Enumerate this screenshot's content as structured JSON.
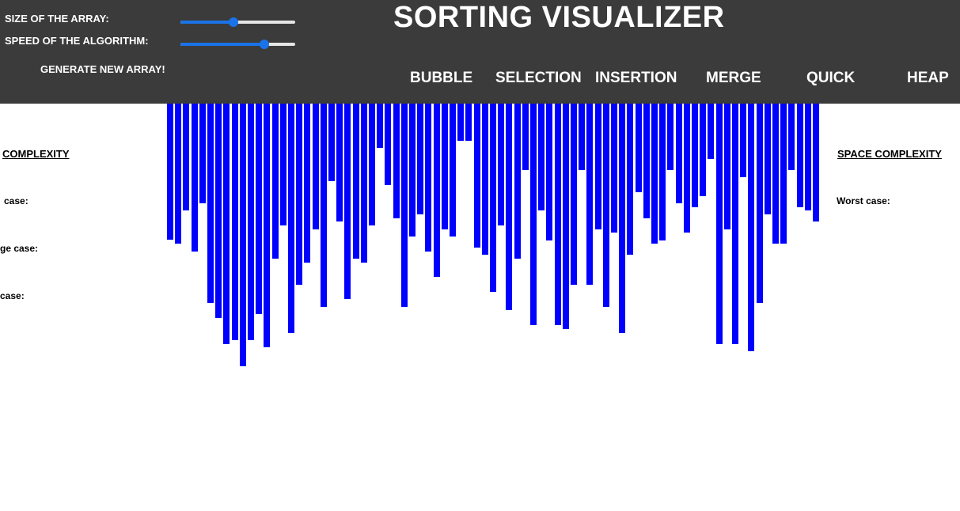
{
  "controls": {
    "size_label": "SIZE OF THE ARRAY:",
    "speed_label": "SPEED OF THE ALGORITHM:",
    "size_level": 0.46,
    "speed_level": 0.73,
    "generate_label": "GENERATE NEW ARRAY!"
  },
  "header": {
    "title": "SORTING VISUALIZER"
  },
  "algorithms": [
    "BUBBLE",
    "SELECTION",
    "INSERTION",
    "MERGE",
    "QUICK",
    "HEAP"
  ],
  "time_complexity": {
    "heading": "COMPLEXITY",
    "worst": "case:",
    "average": "ge case:",
    "best": "case:"
  },
  "space_complexity": {
    "heading": "SPACE COMPLEXITY",
    "worst": "Worst case:"
  },
  "colors": {
    "header_bg": "#3b3b3b",
    "bar": "#0000ff",
    "slider": "#1a73e8"
  },
  "array_values": [
    172,
    177,
    135,
    187,
    126,
    252,
    271,
    304,
    299,
    332,
    299,
    266,
    308,
    196,
    154,
    290,
    229,
    201,
    159,
    257,
    98,
    149,
    247,
    196,
    201,
    154,
    56,
    103,
    145,
    257,
    168,
    140,
    187,
    219,
    159,
    168,
    47,
    47,
    182,
    191,
    238,
    154,
    261,
    196,
    84,
    280,
    135,
    173,
    280,
    285,
    229,
    84,
    229,
    159,
    257,
    163,
    290,
    191,
    112,
    145,
    177,
    173,
    84,
    126,
    163,
    131,
    117,
    70,
    304,
    159,
    304,
    93,
    313,
    252,
    140,
    177,
    177,
    84,
    131,
    135,
    149
  ]
}
